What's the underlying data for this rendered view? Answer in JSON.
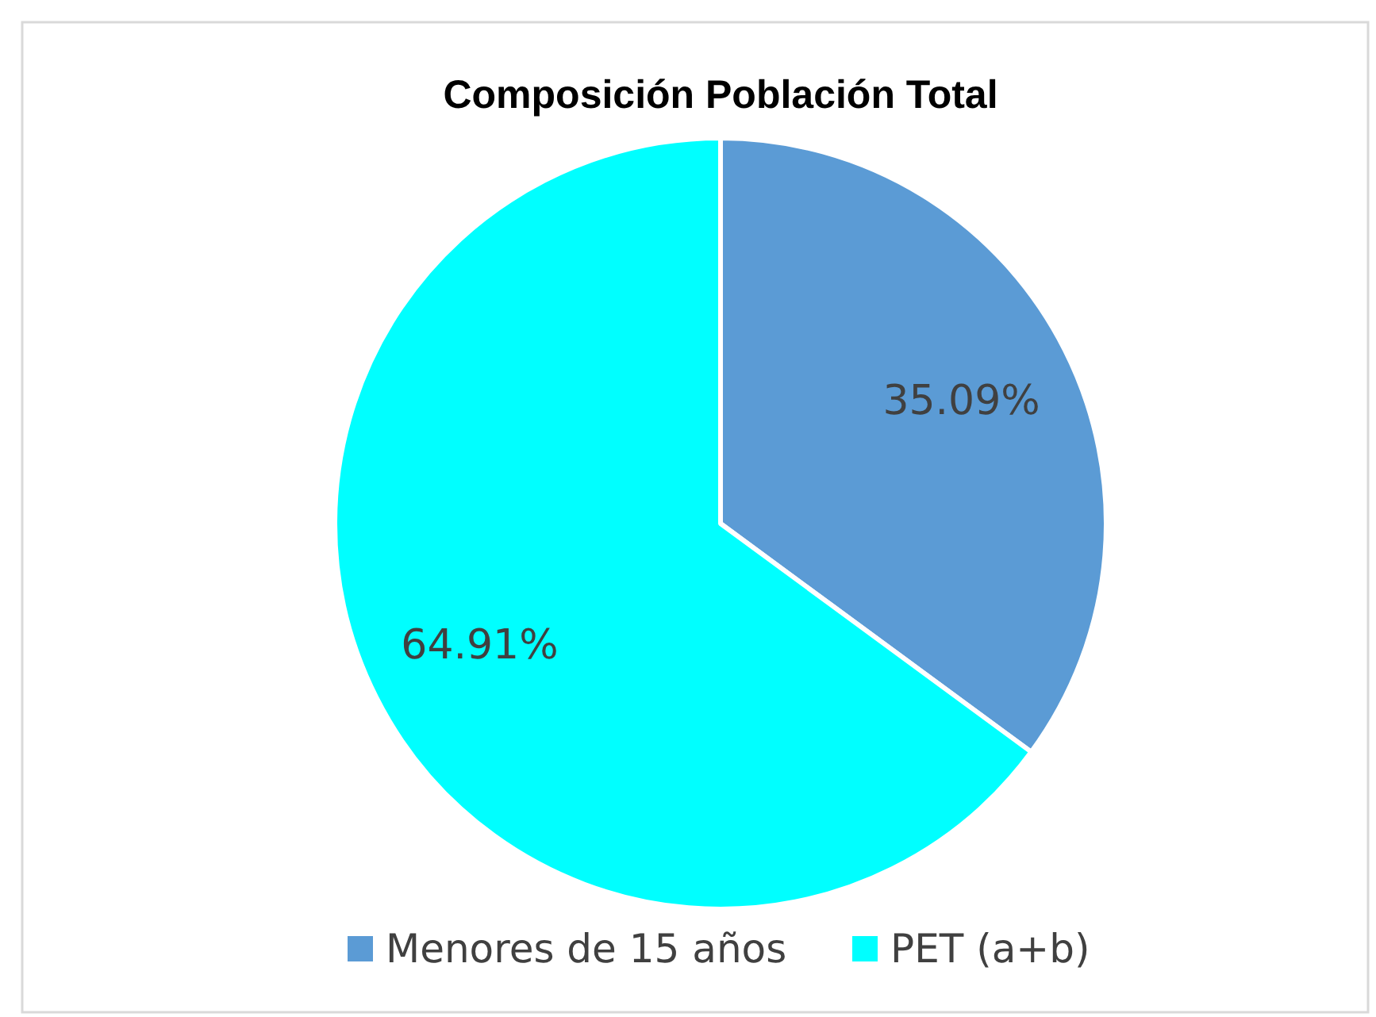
{
  "chart_data": {
    "type": "pie",
    "title": "Composición Población Total",
    "categories": [
      "Menores de 15 años",
      "PET (a+b)"
    ],
    "values": [
      35.09,
      64.91
    ],
    "colors": [
      "#5b9bd5",
      "#00ffff"
    ],
    "value_labels": [
      "35.09%",
      "64.91%"
    ],
    "legend": "bottom"
  }
}
